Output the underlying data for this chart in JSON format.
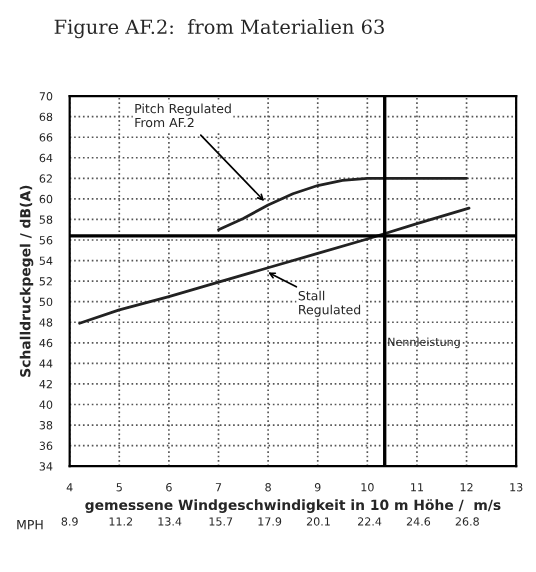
{
  "chart_data": {
    "type": "line",
    "title": "Figure AF.2:  from Materialien 63",
    "xlabel": "gemessene Windgeschwindigkeit in 10 m Höhe /  m/s",
    "ylabel": "Schalldruckpegel / dB(A)",
    "series": [
      {
        "x": [
          4.2,
          5,
          6,
          7,
          8,
          9,
          10,
          11,
          12.05
        ],
        "values": [
          47.9,
          49.2,
          50.5,
          51.9,
          53.3,
          54.7,
          56.1,
          57.6,
          59.1
        ],
        "color": "#222222"
      },
      {
        "x": [
          7,
          7.5,
          8,
          8.5,
          9,
          9.5,
          10,
          11,
          12
        ],
        "values": [
          57.0,
          58.1,
          59.4,
          60.5,
          61.3,
          61.8,
          62,
          62,
          62
        ],
        "color": "#222222"
      }
    ],
    "xlim": [
      4,
      13
    ],
    "xticks": [
      4,
      5,
      6,
      7,
      8,
      9,
      10,
      11,
      12,
      13
    ],
    "ylim": [
      34,
      70
    ],
    "yticks": [
      34,
      36,
      38,
      40,
      42,
      44,
      46,
      48,
      50,
      52,
      54,
      56,
      58,
      60,
      62,
      64,
      66,
      68,
      70
    ],
    "x2label": "MPH",
    "x2lim": [
      8.9,
      29.0
    ],
    "x2ticks": [
      8.9,
      11.2,
      13.4,
      15.7,
      17.9,
      20.1,
      22.4,
      24.6,
      26.8
    ],
    "ref_lines": [
      {
        "axis": "y",
        "value": 56.4,
        "color": "#000000"
      },
      {
        "axis": "x",
        "value": 10.35,
        "label": "Nennleistung",
        "color": "#000000"
      }
    ],
    "annotations": [
      {
        "text": "Pitch Regulated\nFrom AF.2",
        "x": 8.0,
        "y": 59.4
      },
      {
        "text": "Stall\nRegulated",
        "x": 7.9,
        "y": 53.1
      }
    ],
    "grid": true,
    "line_style": "solid",
    "marker": "none"
  }
}
